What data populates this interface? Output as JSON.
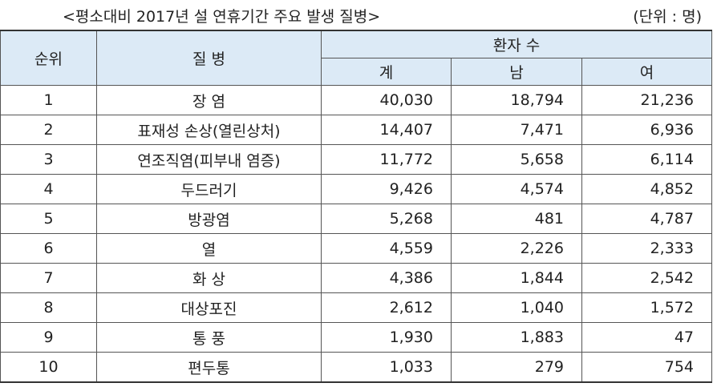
{
  "header": {
    "title": "<평소대비 2017년 설 연휴기간 주요 발생 질병>",
    "unit": "(단위 : 명)"
  },
  "table": {
    "columns": {
      "rank": "순위",
      "disease": "질 병",
      "patients": "환자 수",
      "total": "계",
      "male": "남",
      "female": "여"
    },
    "rows": [
      [
        "1",
        "장 염",
        "40,030",
        "18,794",
        "21,236"
      ],
      [
        "2",
        "표재성 손상(열린상처)",
        "14,407",
        "7,471",
        "6,936"
      ],
      [
        "3",
        "연조직염(피부내 염증)",
        "11,772",
        "5,658",
        "6,114"
      ],
      [
        "4",
        "두드러기",
        "9,426",
        "4,574",
        "4,852"
      ],
      [
        "5",
        "방광염",
        "5,268",
        "481",
        "4,787"
      ],
      [
        "6",
        "열",
        "4,559",
        "2,226",
        "2,333"
      ],
      [
        "7",
        "화 상",
        "4,386",
        "1,844",
        "2,542"
      ],
      [
        "8",
        "대상포진",
        "2,612",
        "1,040",
        "1,572"
      ],
      [
        "9",
        "통 풍",
        "1,930",
        "1,883",
        "47"
      ],
      [
        "10",
        "편두통",
        "1,033",
        "279",
        "754"
      ]
    ]
  }
}
